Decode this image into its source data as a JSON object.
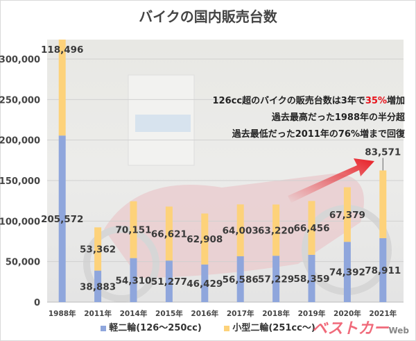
{
  "chart_data": {
    "type": "bar",
    "stacked": true,
    "title": "バイクの国内販売台数",
    "categories": [
      "1988年",
      "2011年",
      "2014年",
      "2015年",
      "2016年",
      "2017年",
      "2018年",
      "2019年",
      "2020年",
      "2021年"
    ],
    "series": [
      {
        "name": "軽二輪(126〜250cc)",
        "color": "#8fa6dc",
        "values": [
          205572,
          38883,
          54310,
          51277,
          46429,
          56586,
          57229,
          58359,
          74392,
          78911
        ]
      },
      {
        "name": "小型二輪(251cc〜)",
        "color": "#fdd27a",
        "values": [
          118496,
          53362,
          70151,
          66621,
          62908,
          64003,
          63220,
          66456,
          67379,
          83571
        ]
      }
    ],
    "value_labels": {
      "series0": [
        "205,572",
        "38,883",
        "54,310",
        "51,277",
        "46,429",
        "56,586",
        "57,229",
        "58,359",
        "74,392",
        "78,911"
      ],
      "series1": [
        "118,496",
        "53,362",
        "70,151",
        "66,621",
        "62,908",
        "64,003",
        "63,220",
        "66,456",
        "67,379",
        "83,571"
      ]
    },
    "y_ticks": [
      "0",
      "50,000",
      "100,000",
      "150,000",
      "200,000",
      "250,000",
      "300,000"
    ],
    "y_tick_values": [
      0,
      50000,
      100000,
      150000,
      200000,
      250000,
      300000
    ],
    "ylim": [
      0,
      325000
    ],
    "grid": true,
    "legend_position": "bottom",
    "xlabel": "",
    "ylabel": ""
  },
  "annotations": {
    "line1_pre": "126cc超のバイクの販売台数は3年で",
    "line1_highlight": "35%",
    "line1_post": "増加",
    "line2": "過去最高だった1988年の半分超",
    "line3": "過去最低だった2011年の76%増まで回復",
    "highlight_color": "#e8141c"
  },
  "logo": {
    "text": "ベストカー",
    "sub": "Web"
  }
}
